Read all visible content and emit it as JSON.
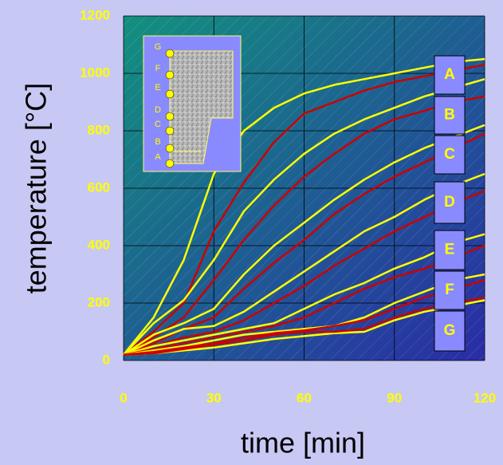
{
  "chart_data": {
    "type": "line",
    "xlabel": "time [min]",
    "ylabel": "temperature [°C]",
    "xlim": [
      0,
      120
    ],
    "xticks": [
      0,
      30,
      60,
      90,
      120
    ],
    "ylim": [
      0,
      1200
    ],
    "yticks": [
      0,
      200,
      400,
      600,
      800,
      1000,
      1200
    ],
    "grid": true,
    "x": [
      0,
      10,
      20,
      30,
      40,
      50,
      60,
      70,
      80,
      90,
      100,
      110,
      120
    ],
    "series": [
      {
        "color": "#ffff00",
        "values": [
          20,
          150,
          350,
          650,
          800,
          880,
          930,
          960,
          980,
          1000,
          1020,
          1040,
          1050
        ]
      },
      {
        "color": "#cc0000",
        "values": [
          20,
          100,
          200,
          450,
          620,
          760,
          860,
          900,
          940,
          970,
          990,
          1010,
          1030
        ]
      },
      {
        "color": "#ffff00",
        "values": [
          20,
          130,
          210,
          350,
          520,
          630,
          720,
          790,
          840,
          880,
          920,
          950,
          980
        ]
      },
      {
        "color": "#cc0000",
        "values": [
          20,
          80,
          150,
          280,
          420,
          540,
          640,
          720,
          790,
          840,
          870,
          900,
          920
        ]
      },
      {
        "color": "#ffff00",
        "values": [
          20,
          90,
          130,
          180,
          300,
          400,
          480,
          560,
          630,
          690,
          740,
          780,
          820
        ]
      },
      {
        "color": "#cc0000",
        "values": [
          20,
          60,
          110,
          150,
          250,
          340,
          420,
          510,
          580,
          640,
          690,
          740,
          790
        ]
      },
      {
        "color": "#ffff00",
        "values": [
          20,
          70,
          110,
          120,
          170,
          240,
          310,
          380,
          450,
          500,
          560,
          610,
          650
        ]
      },
      {
        "color": "#cc0000",
        "values": [
          20,
          50,
          80,
          100,
          140,
          200,
          260,
          330,
          390,
          450,
          500,
          550,
          590
        ]
      },
      {
        "color": "#ffff00",
        "values": [
          20,
          50,
          70,
          90,
          110,
          130,
          180,
          230,
          270,
          320,
          360,
          410,
          440
        ]
      },
      {
        "color": "#cc0000",
        "values": [
          20,
          40,
          60,
          80,
          100,
          120,
          150,
          200,
          250,
          290,
          320,
          360,
          400
        ]
      },
      {
        "color": "#ffff00",
        "values": [
          20,
          35,
          50,
          70,
          90,
          100,
          110,
          120,
          150,
          200,
          240,
          280,
          300
        ]
      },
      {
        "color": "#cc0000",
        "values": [
          20,
          30,
          45,
          60,
          80,
          95,
          105,
          120,
          140,
          180,
          220,
          250,
          280
        ]
      },
      {
        "color": "#ffff00",
        "values": [
          20,
          25,
          35,
          45,
          60,
          75,
          85,
          95,
          100,
          140,
          170,
          190,
          210
        ]
      },
      {
        "color": "#cc0000",
        "values": [
          20,
          25,
          40,
          55,
          70,
          90,
          100,
          100,
          110,
          150,
          180,
          200,
          220
        ]
      }
    ],
    "curve_labels": [
      "A",
      "B",
      "C",
      "D",
      "E",
      "F",
      "G"
    ],
    "inset_labels": [
      "G",
      "F",
      "E",
      "D",
      "C",
      "B",
      "A"
    ]
  }
}
